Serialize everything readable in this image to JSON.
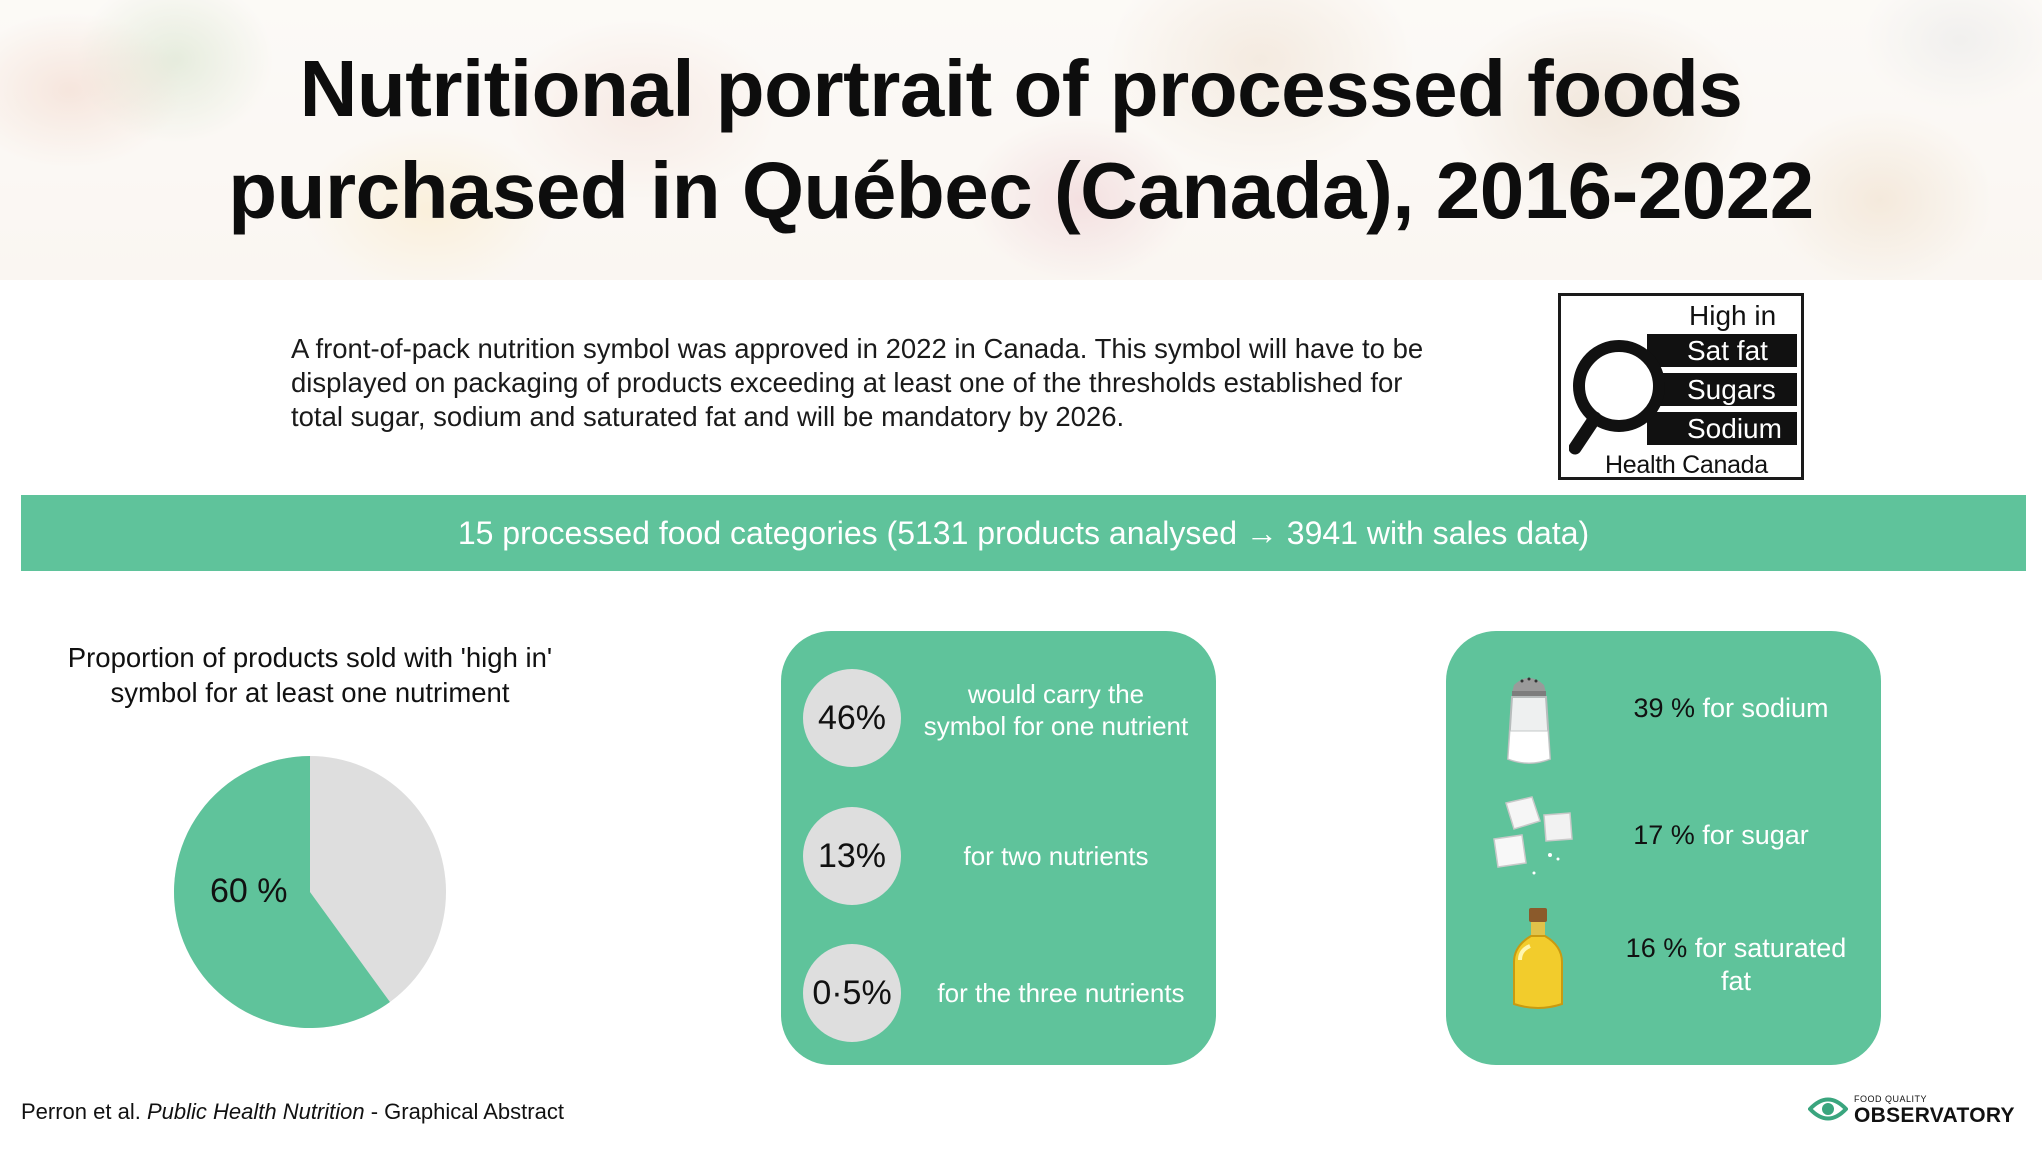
{
  "header": {
    "title_line1": "Nutritional portrait of processed foods",
    "title_line2": "purchased in Québec (Canada), 2016-2022"
  },
  "intro": {
    "line1": "A front-of-pack nutrition symbol was approved in 2022 in Canada. This symbol will have to be",
    "line2": "displayed on packaging of products exceeding at least one of the thresholds established for",
    "line3": "total sugar, sodium and  saturated fat and will be mandatory by 2026."
  },
  "fop_symbol": {
    "heading": "High in",
    "nutrients": [
      "Sat fat",
      "Sugars",
      "Sodium"
    ],
    "authority": "Health Canada"
  },
  "category_bar": {
    "text": "15 processed food categories (5131 products analysed → 3941 with sales data)"
  },
  "pie": {
    "title_line1": "Proportion of products sold with 'high in'",
    "title_line2": "symbol for at least one nutriment",
    "label": "60 %",
    "share_fraction": 0.6,
    "colors": {
      "high_in": "#5fc39b",
      "other": "#dedede"
    }
  },
  "nutrient_count": {
    "items": [
      {
        "value": "46%",
        "line1": "would carry the",
        "line2": "symbol for one nutrient"
      },
      {
        "value": "13%",
        "line1": "for two nutrients",
        "line2": ""
      },
      {
        "value": "0·5%",
        "line1": "for the three nutrients",
        "line2": ""
      }
    ]
  },
  "by_nutrient": {
    "items": [
      {
        "icon": "salt-shaker-icon",
        "pct": "39 %",
        "label": "for sodium",
        "label2": ""
      },
      {
        "icon": "sugar-cubes-icon",
        "pct": "17 %",
        "label": "for sugar",
        "label2": ""
      },
      {
        "icon": "oil-bottle-icon",
        "pct": "16 %",
        "label": "for saturated",
        "label2": "fat"
      }
    ]
  },
  "footer": {
    "citation_authors": "Perron et al. ",
    "citation_journal": "Public Health Nutrition",
    "citation_suffix": " - Graphical Abstract",
    "logo_small": "FOOD QUALITY",
    "logo_big": "OBSERVATORY"
  },
  "colors": {
    "accent": "#5fc39b",
    "bubble": "#dedede",
    "text": "#1a1a1a"
  }
}
